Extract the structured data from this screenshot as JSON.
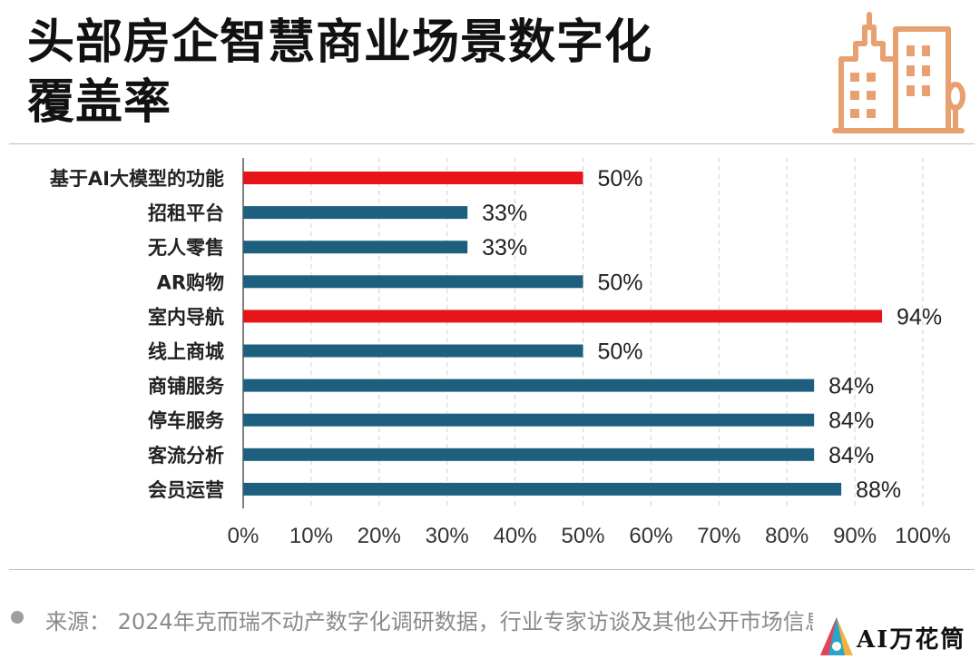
{
  "header": {
    "title_line1": "头部房企智慧商业场景数字化",
    "title_line2": "覆盖率"
  },
  "chart_data": {
    "type": "bar",
    "orientation": "horizontal",
    "categories": [
      "基于AI大模型的功能",
      "招租平台",
      "无人零售",
      "AR购物",
      "室内导航",
      "线上商城",
      "商铺服务",
      "停车服务",
      "客流分析",
      "会员运营"
    ],
    "values": [
      50,
      33,
      33,
      50,
      94,
      50,
      84,
      84,
      84,
      88
    ],
    "value_labels": [
      "50%",
      "33%",
      "33%",
      "50%",
      "94%",
      "50%",
      "84%",
      "84%",
      "84%",
      "88%"
    ],
    "highlighted": [
      true,
      false,
      false,
      false,
      true,
      false,
      false,
      false,
      false,
      false
    ],
    "x_ticks": [
      "0%",
      "10%",
      "20%",
      "30%",
      "40%",
      "50%",
      "60%",
      "70%",
      "80%",
      "90%",
      "100%"
    ],
    "xlim": [
      0,
      100
    ],
    "grid": "vertical dashed",
    "colors": {
      "default": "#1e5f80",
      "highlight": "#e8141b"
    }
  },
  "footer": {
    "source": "来源：  2024年克而瑞不动产数字化调研数据，行业专家访谈及其他公开市场信息"
  },
  "brand": {
    "name": "AI万花筒"
  },
  "colors": {
    "logo": "#e8a070"
  }
}
